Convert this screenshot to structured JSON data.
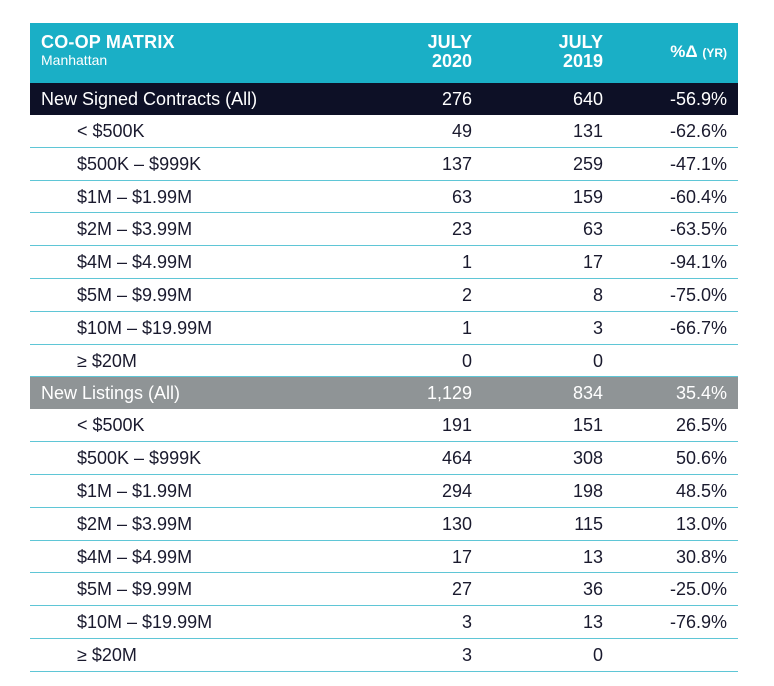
{
  "header": {
    "title": "CO-OP MATRIX",
    "subtitle": "Manhattan",
    "col1_line1": "JULY",
    "col1_line2": "2020",
    "col2_line1": "JULY",
    "col2_line2": "2019",
    "col3": "%Δ",
    "col3_suffix": "(YR)"
  },
  "colors": {
    "header_teal": "#1aafc6",
    "summary_dark": "#0d1026",
    "summary_grey": "#8f9496",
    "row_rule": "#5fc6d6"
  },
  "sections": [
    {
      "label": "New Signed Contracts (All)",
      "v2020": "276",
      "v2019": "640",
      "pct": "-56.9%",
      "rows": [
        {
          "label": "< $500K",
          "v2020": "49",
          "v2019": "131",
          "pct": "-62.6%"
        },
        {
          "label": "$500K – $999K",
          "v2020": "137",
          "v2019": "259",
          "pct": "-47.1%"
        },
        {
          "label": "$1M – $1.99M",
          "v2020": "63",
          "v2019": "159",
          "pct": "-60.4%"
        },
        {
          "label": "$2M – $3.99M",
          "v2020": "23",
          "v2019": "63",
          "pct": "-63.5%"
        },
        {
          "label": "$4M – $4.99M",
          "v2020": "1",
          "v2019": "17",
          "pct": "-94.1%"
        },
        {
          "label": "$5M – $9.99M",
          "v2020": "2",
          "v2019": "8",
          "pct": "-75.0%"
        },
        {
          "label": "$10M – $19.99M",
          "v2020": "1",
          "v2019": "3",
          "pct": "-66.7%"
        },
        {
          "label": "≥ $20M",
          "v2020": "0",
          "v2019": "0",
          "pct": ""
        }
      ]
    },
    {
      "label": "New Listings (All)",
      "v2020": "1,129",
      "v2019": "834",
      "pct": "35.4%",
      "rows": [
        {
          "label": "< $500K",
          "v2020": "191",
          "v2019": "151",
          "pct": "26.5%"
        },
        {
          "label": "$500K – $999K",
          "v2020": "464",
          "v2019": "308",
          "pct": "50.6%"
        },
        {
          "label": "$1M – $1.99M",
          "v2020": "294",
          "v2019": "198",
          "pct": "48.5%"
        },
        {
          "label": "$2M – $3.99M",
          "v2020": "130",
          "v2019": "115",
          "pct": "13.0%"
        },
        {
          "label": "$4M – $4.99M",
          "v2020": "17",
          "v2019": "13",
          "pct": "30.8%"
        },
        {
          "label": "$5M – $9.99M",
          "v2020": "27",
          "v2019": "36",
          "pct": "-25.0%"
        },
        {
          "label": "$10M – $19.99M",
          "v2020": "3",
          "v2019": "13",
          "pct": "-76.9%"
        },
        {
          "label": "≥ $20M",
          "v2020": "3",
          "v2019": "0",
          "pct": ""
        }
      ]
    }
  ]
}
